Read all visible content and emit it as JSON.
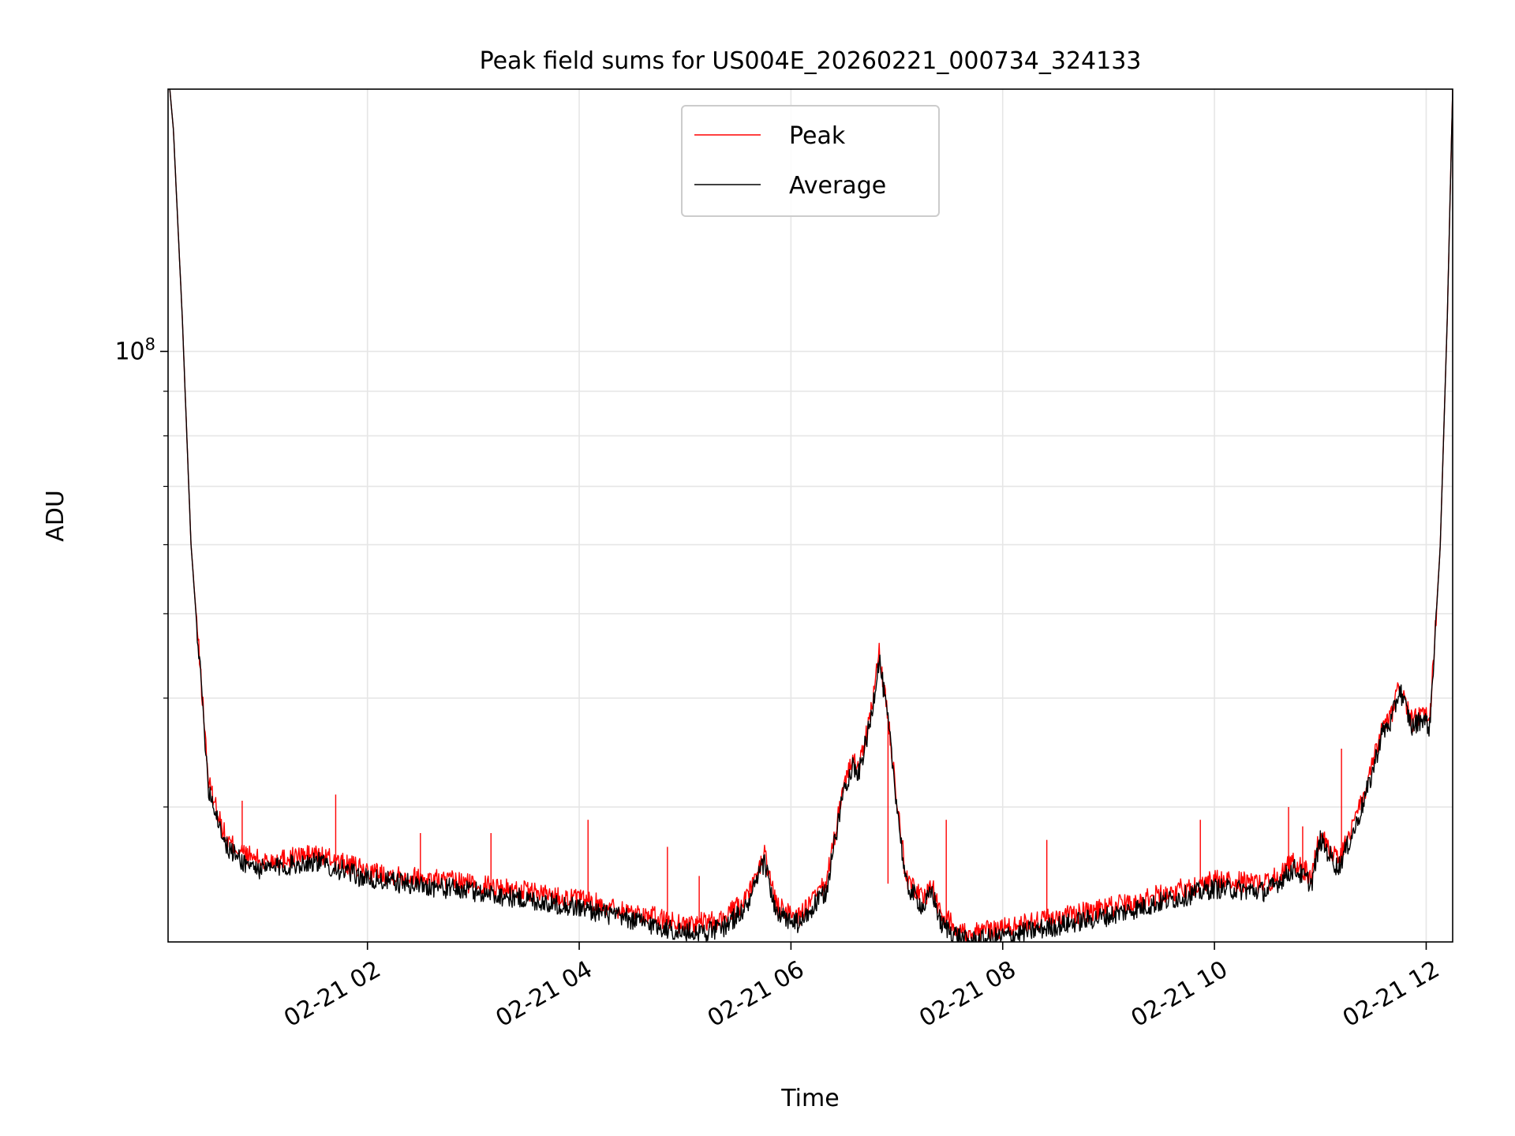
{
  "chart_data": {
    "type": "line",
    "title": "Peak field sums for US004E_20260221_000734_324133",
    "xlabel": "Time",
    "ylabel": "ADU",
    "yscale": "log",
    "xlim": [
      "2026-02-21 00:07",
      "2026-02-21 12:15"
    ],
    "ylim": [
      21000000,
      200000000
    ],
    "xticks": [
      "2026-02-21 02:00",
      "2026-02-21 04:00",
      "2026-02-21 06:00",
      "2026-02-21 08:00",
      "2026-02-21 10:00",
      "2026-02-21 12:00"
    ],
    "xtick_labels": [
      "02-21 02",
      "02-21 04",
      "02-21 06",
      "02-21 08",
      "02-21 10",
      "02-21 12"
    ],
    "ytick_major": 100000000,
    "ytick_major_label": "10",
    "ytick_major_exponent": "8",
    "yticks_minor": [
      30000000,
      40000000,
      50000000,
      60000000,
      70000000,
      80000000,
      90000000
    ],
    "grid": true,
    "legend_position": "upper center",
    "series": [
      {
        "name": "Peak",
        "color": "#ff0000",
        "points": [
          [
            "00:08",
            200000000
          ],
          [
            "00:10",
            180000000
          ],
          [
            "00:15",
            110000000
          ],
          [
            "00:20",
            60000000
          ],
          [
            "00:30",
            32000000
          ],
          [
            "00:40",
            27500000
          ],
          [
            "00:50",
            26500000
          ],
          [
            "01:00",
            26000000
          ],
          [
            "01:30",
            26500000
          ],
          [
            "02:00",
            25300000
          ],
          [
            "03:00",
            24500000
          ],
          [
            "04:00",
            23500000
          ],
          [
            "04:40",
            22500000
          ],
          [
            "05:00",
            22000000
          ],
          [
            "05:20",
            22200000
          ],
          [
            "05:35",
            23500000
          ],
          [
            "05:45",
            26500000
          ],
          [
            "05:52",
            23000000
          ],
          [
            "06:05",
            22500000
          ],
          [
            "06:20",
            24500000
          ],
          [
            "06:30",
            32000000
          ],
          [
            "06:35",
            34000000
          ],
          [
            "06:38",
            33000000
          ],
          [
            "06:45",
            38000000
          ],
          [
            "06:50",
            45000000
          ],
          [
            "06:55",
            38000000
          ],
          [
            "07:05",
            25000000
          ],
          [
            "07:15",
            23500000
          ],
          [
            "07:20",
            24500000
          ],
          [
            "07:25",
            22500000
          ],
          [
            "07:40",
            21500000
          ],
          [
            "08:00",
            21800000
          ],
          [
            "09:00",
            23000000
          ],
          [
            "10:00",
            24700000
          ],
          [
            "10:30",
            24500000
          ],
          [
            "10:45",
            26000000
          ],
          [
            "10:55",
            25000000
          ],
          [
            "11:00",
            28000000
          ],
          [
            "11:10",
            26000000
          ],
          [
            "11:20",
            29000000
          ],
          [
            "11:28",
            32500000
          ],
          [
            "11:35",
            37000000
          ],
          [
            "11:40",
            38000000
          ],
          [
            "11:45",
            41500000
          ],
          [
            "11:52",
            37500000
          ],
          [
            "11:58",
            38500000
          ],
          [
            "12:02",
            37500000
          ],
          [
            "12:08",
            60000000
          ],
          [
            "12:12",
            110000000
          ],
          [
            "12:15",
            200000000
          ]
        ],
        "spikes": [
          [
            "00:49",
            30500000
          ],
          [
            "01:42",
            31000000
          ],
          [
            "02:30",
            28000000
          ],
          [
            "03:10",
            28000000
          ],
          [
            "04:05",
            29000000
          ],
          [
            "04:50",
            27000000
          ],
          [
            "05:08",
            25000000
          ],
          [
            "06:55",
            24500000
          ],
          [
            "07:28",
            29000000
          ],
          [
            "08:25",
            27500000
          ],
          [
            "09:52",
            29000000
          ],
          [
            "10:42",
            30000000
          ],
          [
            "10:50",
            28500000
          ],
          [
            "11:12",
            35000000
          ]
        ]
      },
      {
        "name": "Average",
        "color": "#000000",
        "points": [
          [
            "00:08",
            200000000
          ],
          [
            "00:10",
            180000000
          ],
          [
            "00:15",
            110000000
          ],
          [
            "00:20",
            60000000
          ],
          [
            "00:30",
            31500000
          ],
          [
            "00:40",
            27000000
          ],
          [
            "00:50",
            25900000
          ],
          [
            "01:00",
            25400000
          ],
          [
            "01:30",
            26000000
          ],
          [
            "02:00",
            24800000
          ],
          [
            "03:00",
            24000000
          ],
          [
            "04:00",
            23000000
          ],
          [
            "04:40",
            22000000
          ],
          [
            "05:00",
            21500000
          ],
          [
            "05:20",
            21700000
          ],
          [
            "05:35",
            23000000
          ],
          [
            "05:45",
            26000000
          ],
          [
            "05:52",
            22500000
          ],
          [
            "06:05",
            22000000
          ],
          [
            "06:20",
            24000000
          ],
          [
            "06:30",
            31500000
          ],
          [
            "06:35",
            33500000
          ],
          [
            "06:38",
            32500000
          ],
          [
            "06:45",
            37500000
          ],
          [
            "06:50",
            44500000
          ],
          [
            "06:55",
            37500000
          ],
          [
            "07:05",
            24500000
          ],
          [
            "07:15",
            23000000
          ],
          [
            "07:20",
            24000000
          ],
          [
            "07:25",
            22000000
          ],
          [
            "07:40",
            21000000
          ],
          [
            "08:00",
            21300000
          ],
          [
            "09:00",
            22500000
          ],
          [
            "10:00",
            24200000
          ],
          [
            "10:30",
            24000000
          ],
          [
            "10:45",
            25500000
          ],
          [
            "10:55",
            24500000
          ],
          [
            "11:00",
            27500000
          ],
          [
            "11:10",
            25500000
          ],
          [
            "11:20",
            28500000
          ],
          [
            "11:28",
            32000000
          ],
          [
            "11:35",
            36500000
          ],
          [
            "11:40",
            37500000
          ],
          [
            "11:45",
            41000000
          ],
          [
            "11:52",
            37000000
          ],
          [
            "11:58",
            38000000
          ],
          [
            "12:02",
            37000000
          ],
          [
            "12:08",
            60000000
          ],
          [
            "12:12",
            110000000
          ],
          [
            "12:15",
            200000000
          ]
        ]
      }
    ]
  }
}
